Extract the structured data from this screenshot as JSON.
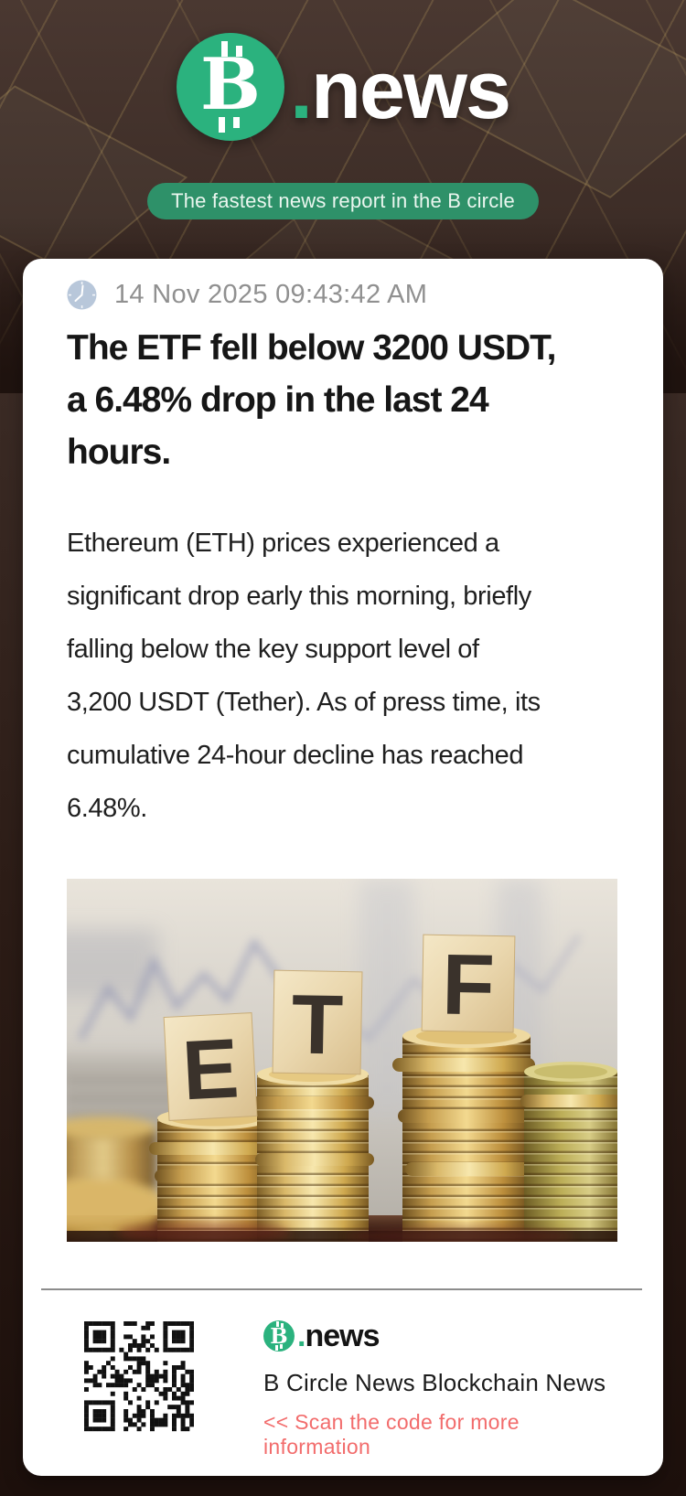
{
  "colors": {
    "accent_green": "#2bb27e",
    "pill_green": "#2e9169",
    "bg_brown": "#3a2a25",
    "card_white": "#ffffff",
    "text_dark": "#161616",
    "text_gray": "#909090",
    "link_red": "#f26c6c",
    "clock_blue": "#b8c7da"
  },
  "header": {
    "logo_b": "B",
    "logo_dot": ".",
    "logo_text": "news",
    "tagline": "The fastest news report in the B circle"
  },
  "article": {
    "timestamp": "14 Nov 2025 09:43:42 AM",
    "headline": "The ETF fell below 3200 USDT, a 6.48% drop in the last 24 hours.",
    "headline_lines": [
      "The ETF fell below 3200 USDT,",
      "a 6.48% drop in the last 24",
      "hours."
    ],
    "body": "Ethereum (ETH) prices experienced a significant drop early this morning, briefly falling below the key support level of 3,200 USDT (Tether). As of press time, its cumulative 24-hour decline has reached 6.48%.",
    "body_lines": [
      "Ethereum (ETH) prices experienced a",
      "significant drop early this morning, briefly",
      "falling below the key support level of",
      "3,200 USDT (Tether). As of press time, its",
      "cumulative 24-hour decline has reached",
      "6.48%."
    ],
    "image_blocks": [
      "E",
      "T",
      "F"
    ]
  },
  "footer": {
    "logo_b": "B",
    "logo_dot": ".",
    "logo_text": "news",
    "publisher": "B Circle News Blockchain News",
    "scan_hint": "<< Scan the code for more information"
  }
}
